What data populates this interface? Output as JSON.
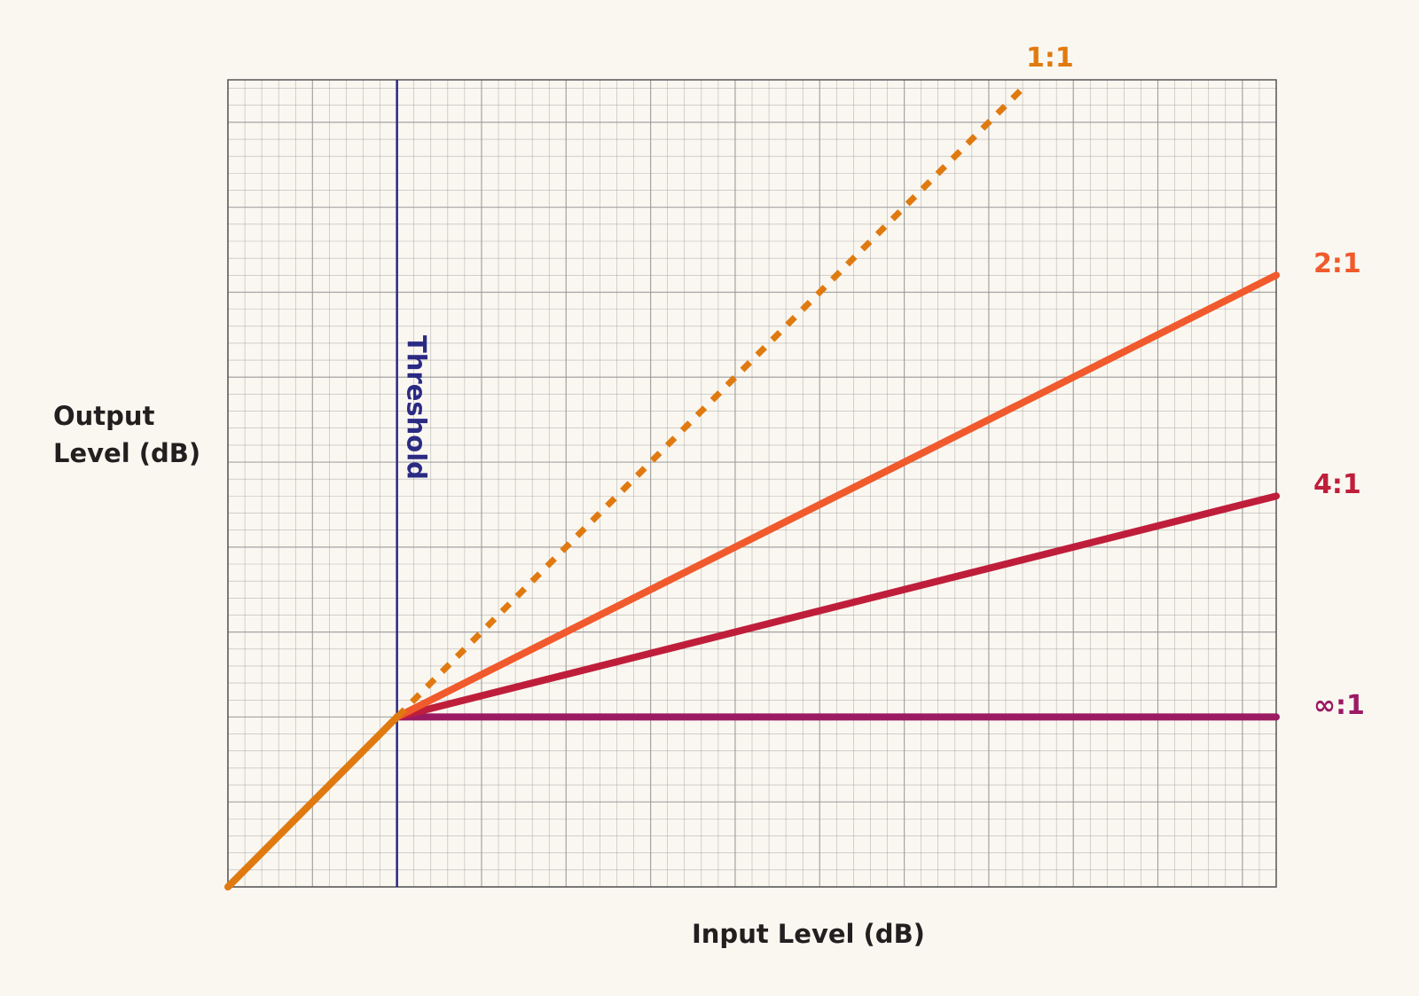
{
  "chart_data": {
    "type": "line",
    "xlabel": "Input Level (dB)",
    "ylabel_lines": [
      "Output",
      "Level (dB)"
    ],
    "threshold_label": "Threshold",
    "threshold_x": 20,
    "xlim": [
      0,
      124
    ],
    "ylim": [
      0,
      95
    ],
    "grid": true,
    "grid_step": 2,
    "major_step": 10,
    "series": [
      {
        "name": "1:1",
        "color": "#e07a10",
        "dashed": true,
        "x": [
          20,
          94
        ],
        "y": [
          20,
          94
        ]
      },
      {
        "name": "2:1",
        "color": "#f05a2c",
        "dashed": false,
        "x": [
          20,
          124
        ],
        "y": [
          20,
          72
        ]
      },
      {
        "name": "4:1",
        "color": "#bf1e3a",
        "dashed": false,
        "x": [
          20,
          124
        ],
        "y": [
          20,
          46
        ]
      },
      {
        "name": "∞:1",
        "color": "#9b1b63",
        "dashed": false,
        "x": [
          20,
          124
        ],
        "y": [
          20,
          20
        ]
      }
    ],
    "below_threshold": {
      "color": "#e07a10",
      "x": [
        0,
        20
      ],
      "y": [
        0,
        20
      ]
    },
    "colors": {
      "threshold": "#2b2a83",
      "grid": "#9a9a9a",
      "background": "#faf7f1",
      "axis_text": "#231f20"
    }
  }
}
